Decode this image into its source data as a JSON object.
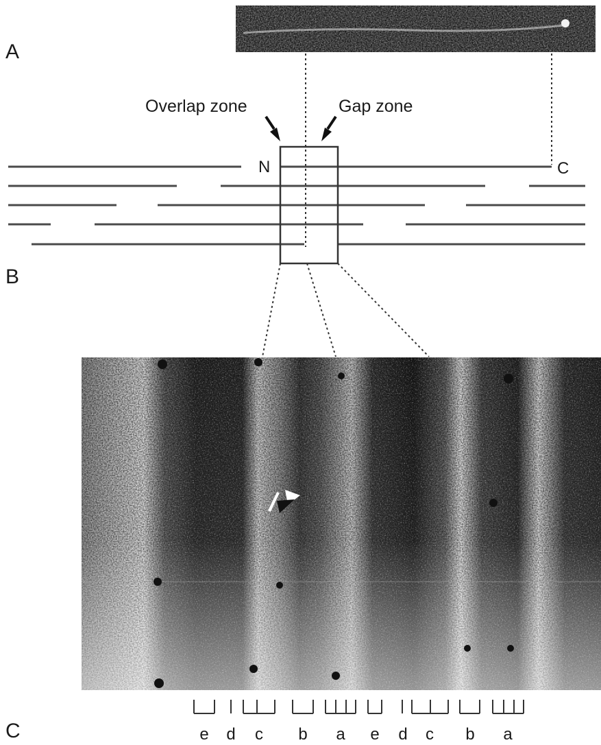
{
  "panels": {
    "a": {
      "label": "A"
    },
    "b": {
      "label": "B"
    },
    "c": {
      "label": "C"
    }
  },
  "zones": {
    "overlap": "Overlap zone",
    "gap": "Gap zone"
  },
  "ends": {
    "n": "N",
    "c": "C"
  },
  "bands": [
    "e",
    "d",
    "c",
    "b",
    "a",
    "e",
    "d",
    "c",
    "b",
    "a"
  ],
  "colors": {
    "line": "#4a4a4a",
    "micrograph_dark": "#1c1c1c",
    "micrograph_light": "#d9d9d9"
  }
}
